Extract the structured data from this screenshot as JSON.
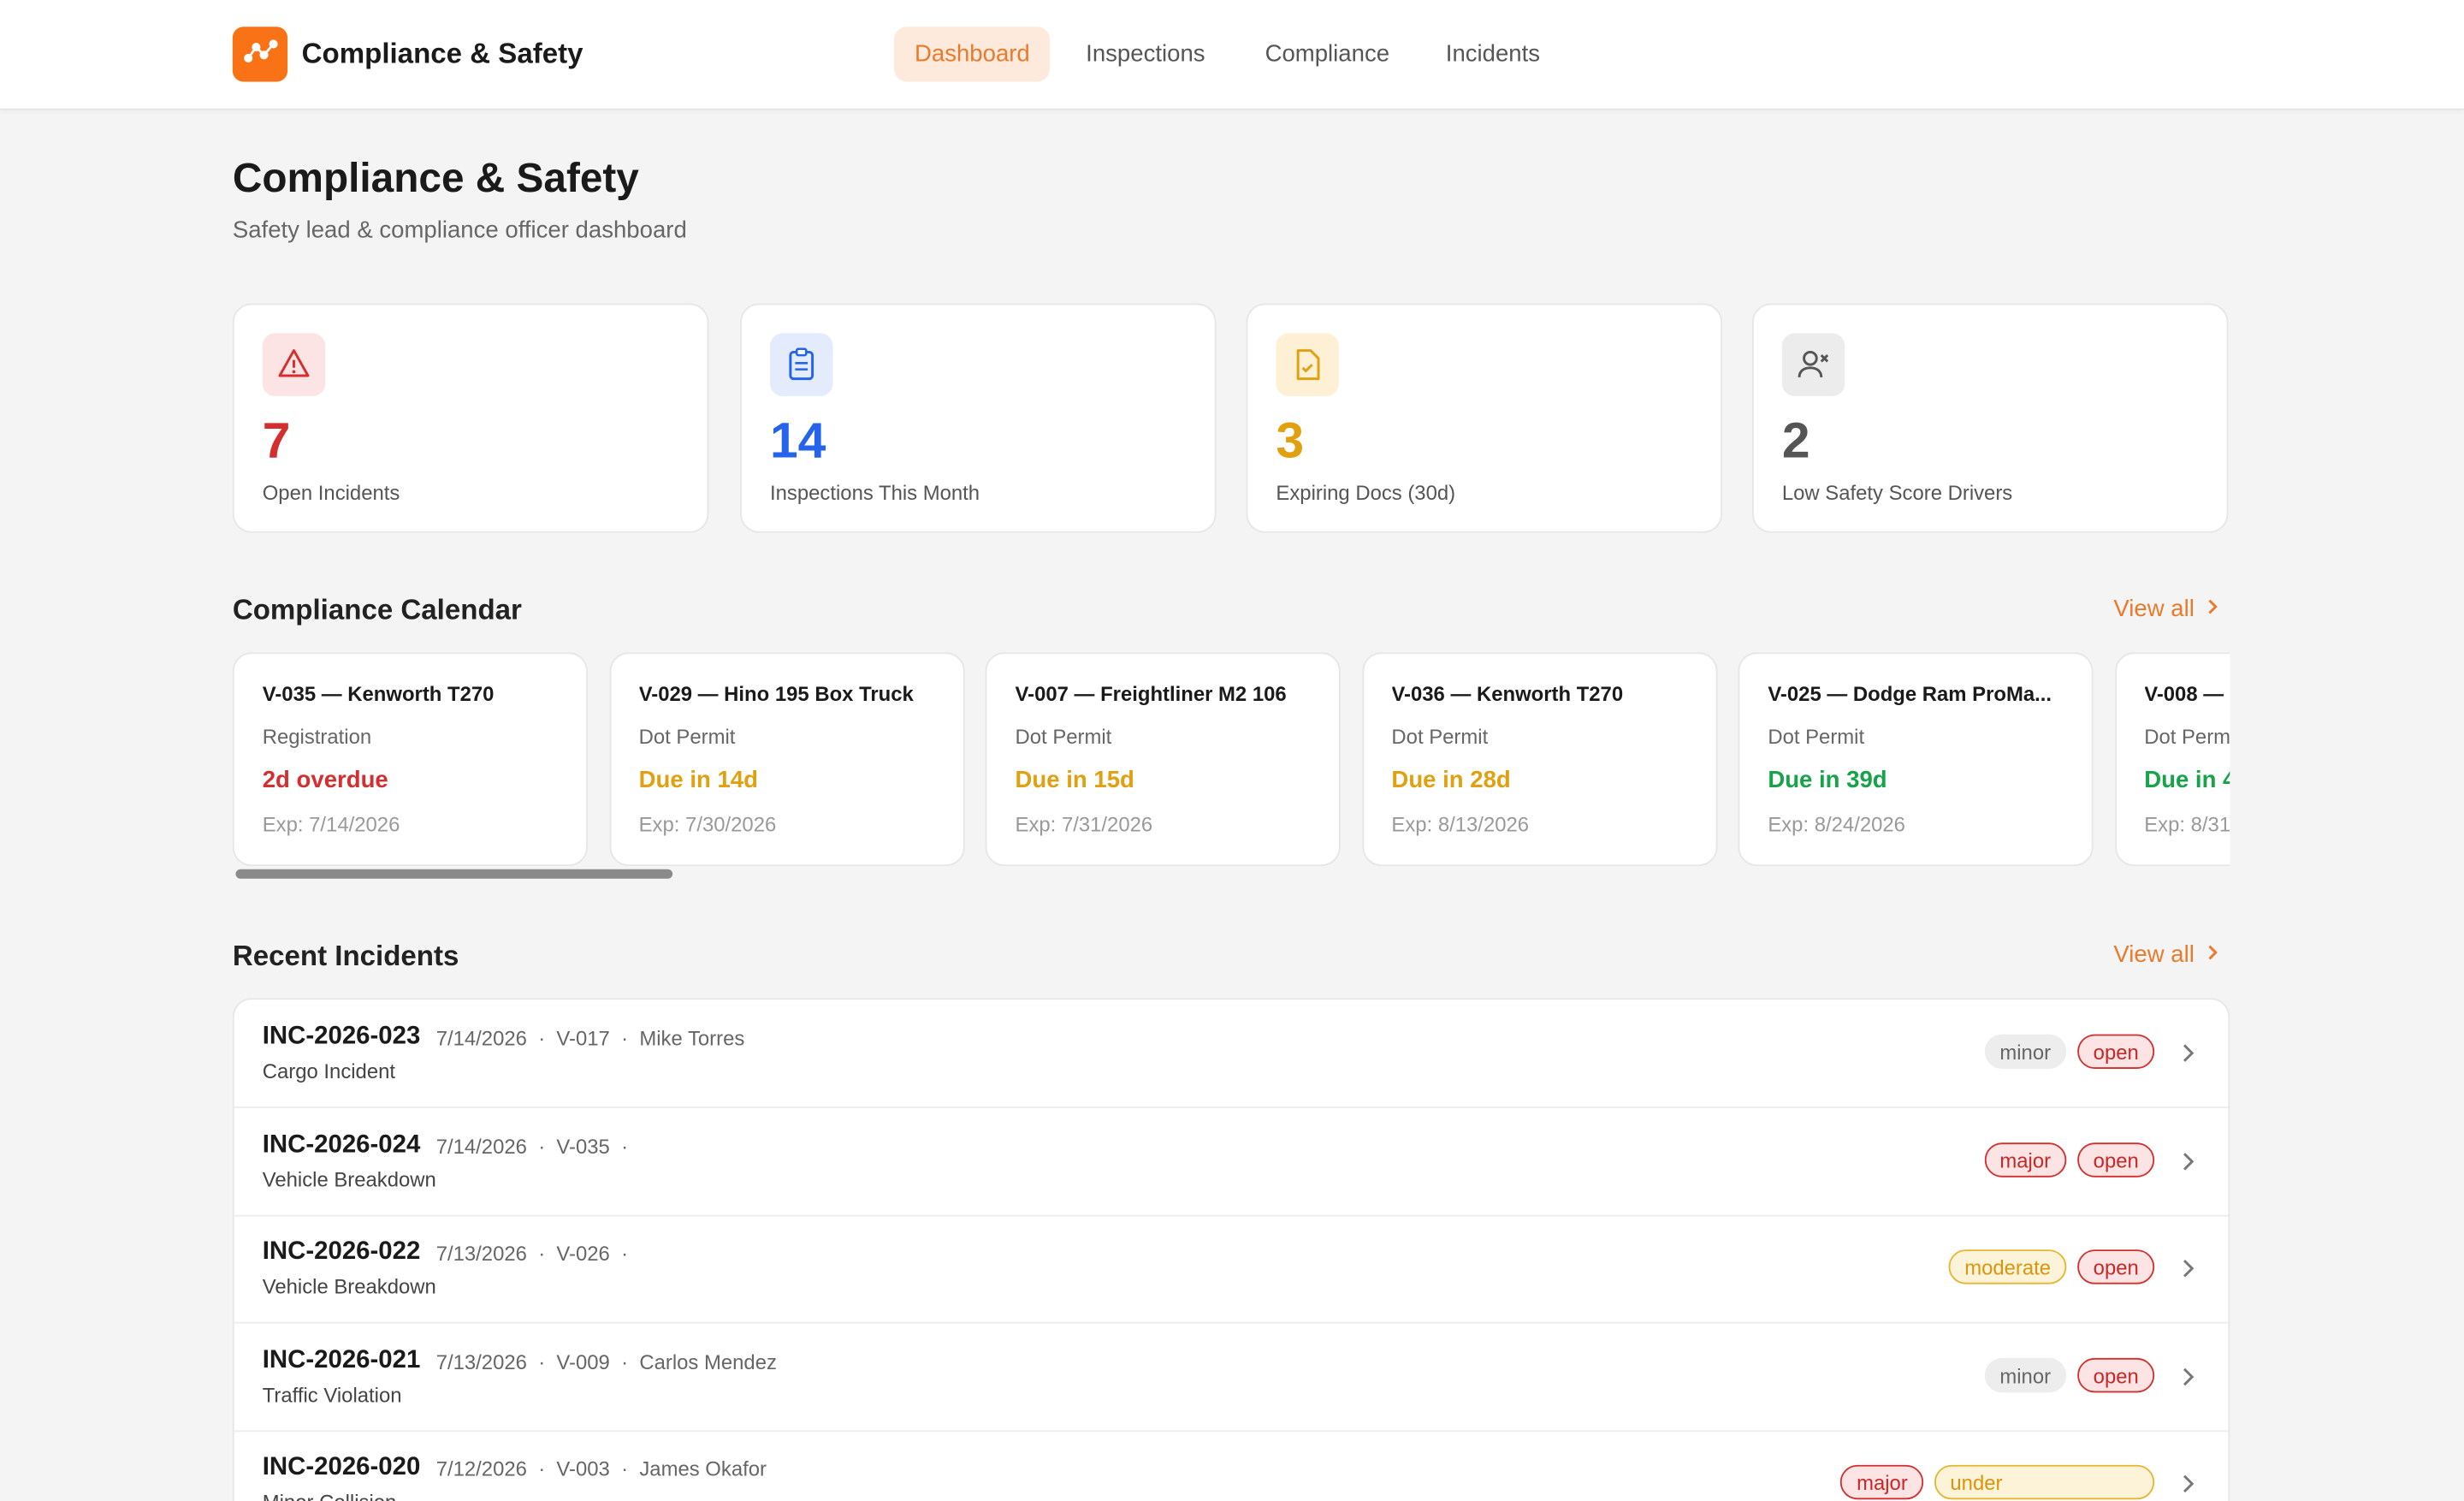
{
  "header": {
    "brand": "Compliance & Safety",
    "nav": [
      "Dashboard",
      "Inspections",
      "Compliance",
      "Incidents"
    ]
  },
  "page": {
    "title": "Compliance & Safety",
    "subtitle": "Safety lead & compliance officer dashboard"
  },
  "stats": [
    {
      "value": 7,
      "label": "Open Incidents"
    },
    {
      "value": 14,
      "label": "Inspections This Month"
    },
    {
      "value": 3,
      "label": "Expiring Docs (30d)"
    },
    {
      "value": 2,
      "label": "Low Safety Score Drivers"
    }
  ],
  "calendar": {
    "title": "Compliance Calendar",
    "view_all": "View all",
    "items": [
      {
        "vehicle": "V-035 — Kenworth T270",
        "doc": "Registration",
        "status": "2d overdue",
        "expires": "Exp: 7/14/2026"
      },
      {
        "vehicle": "V-029 — Hino 195 Box Truck",
        "doc": "Dot Permit",
        "status": "Due in 14d",
        "expires": "Exp: 7/30/2026"
      },
      {
        "vehicle": "V-007 — Freightliner M2 106",
        "doc": "Dot Permit",
        "status": "Due in 15d",
        "expires": "Exp: 7/31/2026"
      },
      {
        "vehicle": "V-036 — Kenworth T270",
        "doc": "Dot Permit",
        "status": "Due in 28d",
        "expires": "Exp: 8/13/2026"
      },
      {
        "vehicle": "V-025 — Dodge Ram ProMa...",
        "doc": "Dot Permit",
        "status": "Due in 39d",
        "expires": "Exp: 8/24/2026"
      },
      {
        "vehicle": "V-008 —",
        "doc": "Dot Perm",
        "status": "Due in 4",
        "expires": "Exp: 8/31"
      }
    ]
  },
  "incidents": {
    "title": "Recent Incidents",
    "view_all": "View all",
    "rows": [
      {
        "id": "INC-2026-023",
        "date": "7/14/2026",
        "vehicle": "V-017",
        "driver": "Mike Torres",
        "type": "Cargo Incident",
        "severity": "minor",
        "status": "open"
      },
      {
        "id": "INC-2026-024",
        "date": "7/14/2026",
        "vehicle": "V-035",
        "type": "Vehicle Breakdown",
        "severity": "major",
        "status": "open"
      },
      {
        "id": "INC-2026-022",
        "date": "7/13/2026",
        "vehicle": "V-026",
        "type": "Vehicle Breakdown",
        "severity": "moderate",
        "status": "open"
      },
      {
        "id": "INC-2026-021",
        "date": "7/13/2026",
        "vehicle": "V-009",
        "driver": "Carlos Mendez",
        "type": "Traffic Violation",
        "severity": "minor",
        "status": "open"
      },
      {
        "id": "INC-2026-020",
        "date": "7/12/2026",
        "vehicle": "V-003",
        "driver": "James Okafor",
        "type": "Minor Collision",
        "severity": "major",
        "status": "under"
      }
    ]
  }
}
